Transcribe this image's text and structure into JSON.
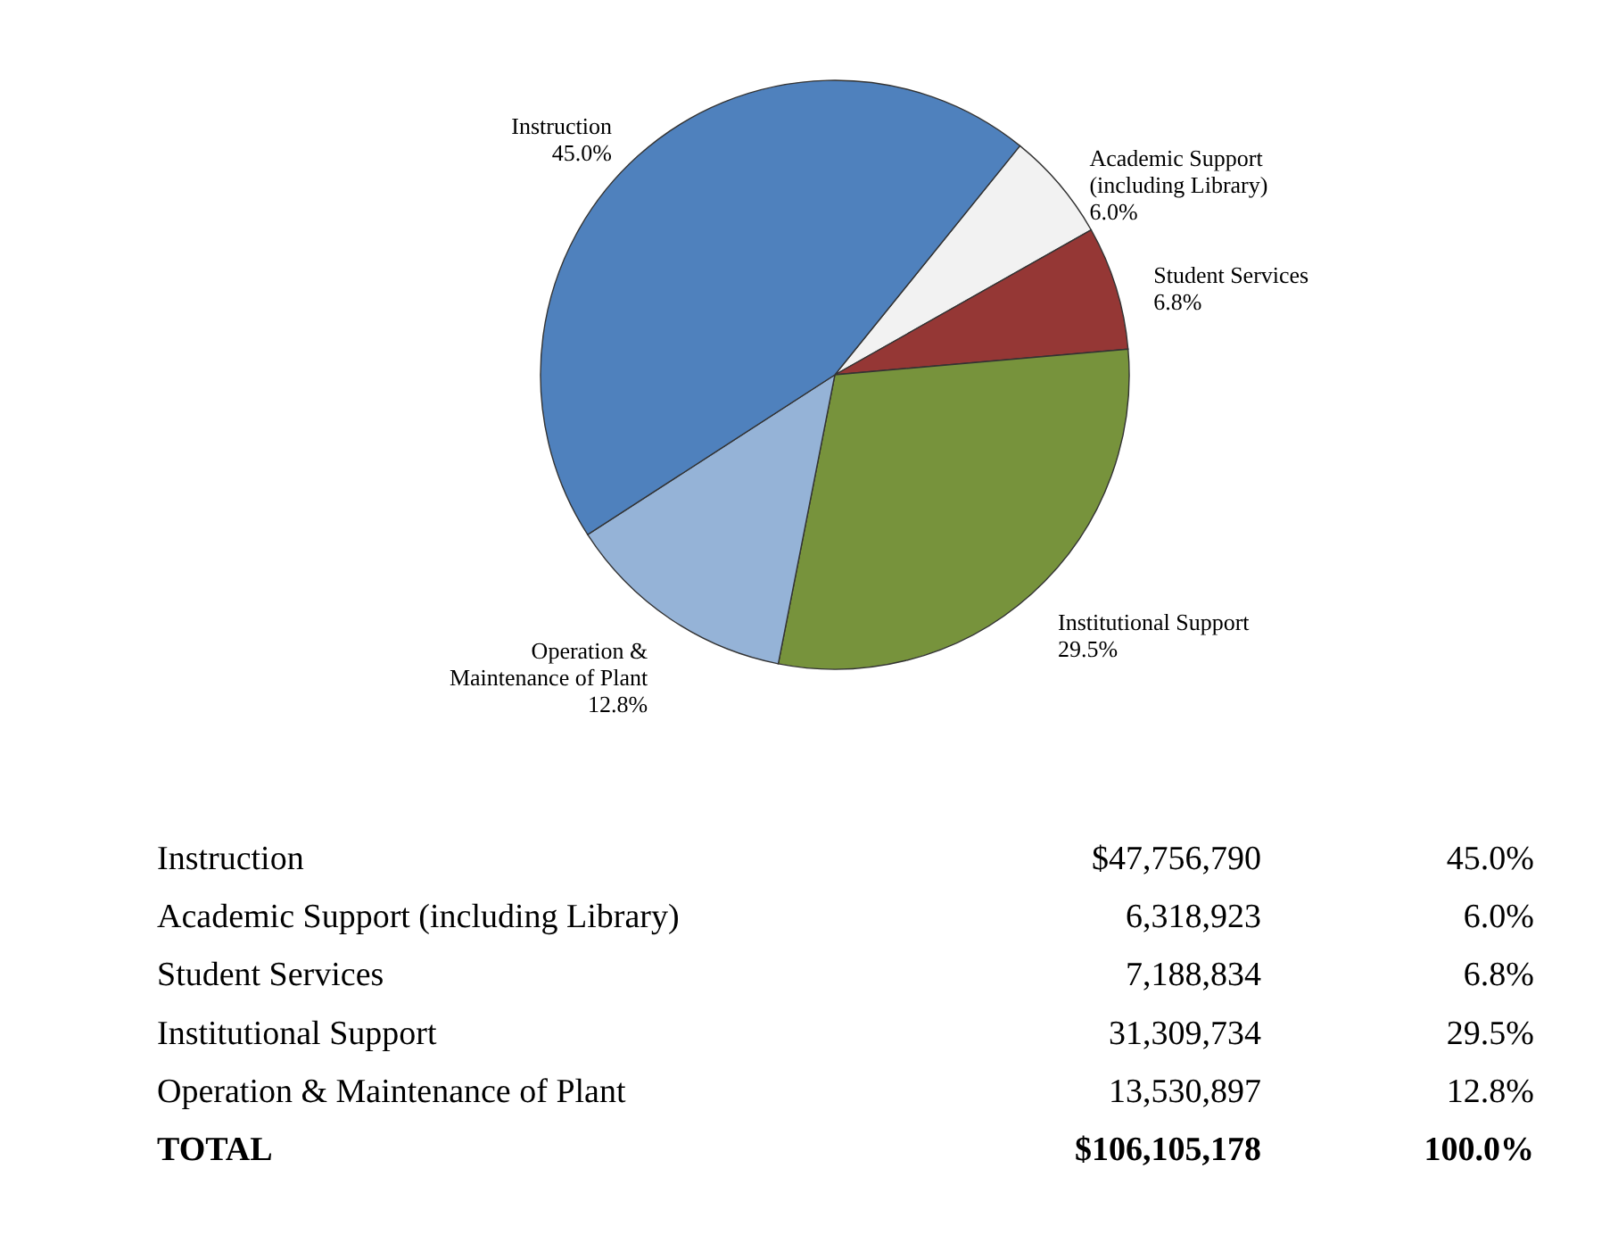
{
  "chart_data": {
    "type": "pie",
    "categories": [
      "Academic Support (including Library)",
      "Student Services",
      "Institutional Support",
      "Operation & Maintenance of Plant",
      "Instruction"
    ],
    "values": [
      6.0,
      6.8,
      29.5,
      12.8,
      45.0
    ],
    "value_labels": [
      "6.0%",
      "6.8%",
      "29.5%",
      "12.8%",
      "45.0%"
    ],
    "colors": [
      "#f2f2f2",
      "#953735",
      "#77933c",
      "#95b3d7",
      "#4f81bd"
    ],
    "annotations": [
      "Instruction",
      "$47,756,790",
      "45.0%",
      "Academic Support (including Library)",
      "6,318,923",
      "6.0%",
      "Student Services",
      "7,188,834",
      "6.8%",
      "Institutional Support",
      "31,309,734",
      "29.5%",
      "Operation & Maintenance of Plant",
      "13,530,897",
      "12.8%",
      "TOTAL",
      "$106,105,178",
      "100.0%"
    ]
  }
}
